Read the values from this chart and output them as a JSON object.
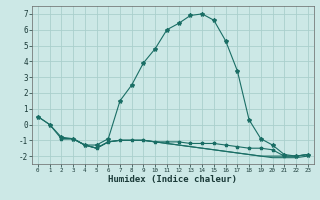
{
  "xlabel": "Humidex (Indice chaleur)",
  "ylabel": "",
  "background_color": "#cce8e6",
  "grid_color": "#aacfcc",
  "line_color": "#1a6e65",
  "xlim": [
    -0.5,
    23.5
  ],
  "ylim": [
    -2.5,
    7.5
  ],
  "yticks": [
    -2,
    -1,
    0,
    1,
    2,
    3,
    4,
    5,
    6,
    7
  ],
  "xticks": [
    0,
    1,
    2,
    3,
    4,
    5,
    6,
    7,
    8,
    9,
    10,
    11,
    12,
    13,
    14,
    15,
    16,
    17,
    18,
    19,
    20,
    21,
    22,
    23
  ],
  "line1_x": [
    0,
    1,
    2,
    3,
    4,
    5,
    6,
    7,
    8,
    9,
    10,
    11,
    12,
    13,
    14,
    15,
    16,
    17,
    18,
    19,
    20,
    21,
    22,
    23
  ],
  "line1_y": [
    0.5,
    0.0,
    -0.8,
    -0.9,
    -1.3,
    -1.3,
    -0.9,
    1.5,
    2.5,
    3.9,
    4.8,
    6.0,
    6.4,
    6.9,
    7.0,
    6.6,
    5.3,
    3.4,
    0.3,
    -0.9,
    -1.3,
    -1.9,
    -2.0,
    -1.9
  ],
  "line2_x": [
    0,
    1,
    2,
    3,
    4,
    5,
    6,
    7,
    8,
    9,
    10,
    11,
    12,
    13,
    14,
    15,
    16,
    17,
    18,
    19,
    20,
    21,
    22,
    23
  ],
  "line2_y": [
    0.5,
    0.0,
    -0.9,
    -0.9,
    -1.3,
    -1.5,
    -1.1,
    -1.0,
    -1.0,
    -1.0,
    -1.1,
    -1.1,
    -1.1,
    -1.2,
    -1.2,
    -1.2,
    -1.3,
    -1.4,
    -1.5,
    -1.5,
    -1.6,
    -2.0,
    -2.0,
    -1.9
  ],
  "line3_x": [
    2,
    3,
    4,
    5,
    6,
    7,
    8,
    9,
    10,
    11,
    12,
    13,
    14,
    15,
    16,
    17,
    18,
    19,
    20,
    21,
    22,
    23
  ],
  "line3_y": [
    -0.9,
    -0.9,
    -1.3,
    -1.5,
    -1.1,
    -1.0,
    -1.0,
    -1.0,
    -1.1,
    -1.2,
    -1.3,
    -1.4,
    -1.5,
    -1.6,
    -1.7,
    -1.8,
    -1.9,
    -2.0,
    -2.0,
    -2.0,
    -2.0,
    -1.9
  ],
  "line4_x": [
    2,
    3,
    4,
    5,
    6,
    7,
    8,
    9,
    10,
    11,
    12,
    13,
    14,
    15,
    16,
    17,
    18,
    19,
    20,
    21,
    22,
    23
  ],
  "line4_y": [
    -0.9,
    -0.9,
    -1.3,
    -1.5,
    -1.1,
    -1.0,
    -1.0,
    -1.0,
    -1.1,
    -1.2,
    -1.3,
    -1.4,
    -1.5,
    -1.6,
    -1.7,
    -1.8,
    -1.9,
    -2.0,
    -2.1,
    -2.1,
    -2.1,
    -2.0
  ]
}
